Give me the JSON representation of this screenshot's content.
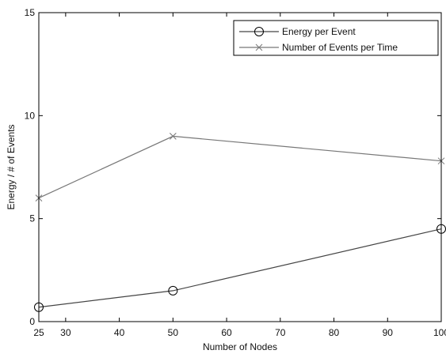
{
  "chart_data": {
    "type": "line",
    "x": [
      25,
      50,
      100
    ],
    "series": [
      {
        "name": "Energy per Event",
        "values": [
          0.7,
          1.5,
          4.5
        ],
        "marker": "circle",
        "color": "#444444"
      },
      {
        "name": "Number of Events per Time",
        "values": [
          6.0,
          9.0,
          7.8
        ],
        "marker": "x",
        "color": "#777777"
      }
    ],
    "xlabel": "Number of Nodes",
    "ylabel": "Energy / # of Events",
    "xlim": [
      25,
      100
    ],
    "ylim": [
      0,
      15
    ],
    "xticks": [
      25,
      30,
      40,
      50,
      60,
      70,
      80,
      90,
      100
    ],
    "yticks": [
      0,
      5,
      10,
      15
    ],
    "grid": false,
    "legend_position": "top-right"
  }
}
